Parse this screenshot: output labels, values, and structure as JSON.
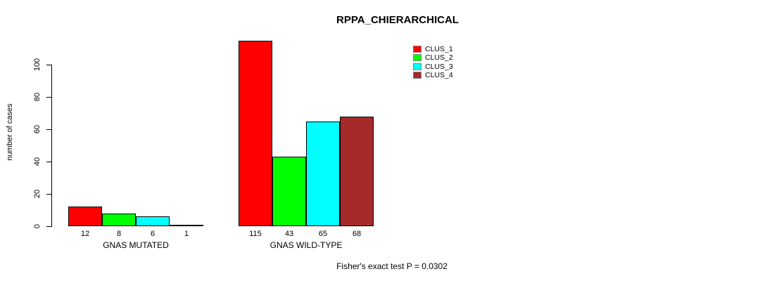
{
  "title": "RPPA_CHIERARCHICAL",
  "footer_note": "Fisher's exact test P = 0.0302",
  "chart_data": {
    "type": "bar",
    "title": "RPPA_CHIERARCHICAL",
    "xlabel": "",
    "ylabel": "number of cases",
    "ylim": [
      0,
      115
    ],
    "yticks": [
      0,
      20,
      40,
      60,
      80,
      100
    ],
    "grid": false,
    "legend_position": "top-right",
    "annotation": "Fisher's exact test P = 0.0302",
    "categories": [
      "GNAS MUTATED",
      "GNAS WILD-TYPE"
    ],
    "series": [
      {
        "name": "CLUS_1",
        "color": "#FF0000",
        "values": [
          12,
          115
        ]
      },
      {
        "name": "CLUS_2",
        "color": "#00FF00",
        "values": [
          8,
          43
        ]
      },
      {
        "name": "CLUS_3",
        "color": "#00FFFF",
        "values": [
          6,
          65
        ]
      },
      {
        "name": "CLUS_4",
        "color": "#A52A2A",
        "values": [
          1,
          68
        ]
      }
    ],
    "bar_value_labels": [
      [
        "12",
        "8",
        "6",
        "1"
      ],
      [
        "115",
        "43",
        "65",
        "68"
      ]
    ],
    "bar_border_color": "#000000",
    "axis_color": "#000000"
  }
}
